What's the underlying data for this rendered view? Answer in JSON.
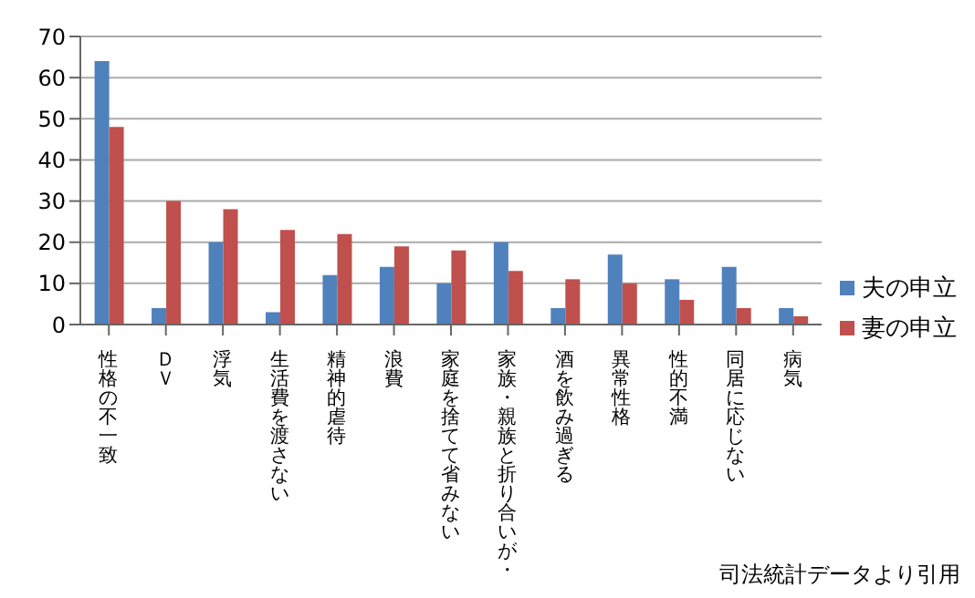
{
  "chart_data": {
    "type": "bar",
    "categories": [
      "性格の不一致",
      "ＤＶ",
      "浮気",
      "生活費を渡さない",
      "精神的虐待",
      "浪費",
      "家庭を捨てて省みない",
      "家族・親族と折り合いが・",
      "酒を飲み過ぎる",
      "異常性格",
      "性的不満",
      "同居に応じない",
      "病気"
    ],
    "series": [
      {
        "name": "夫の申立",
        "color": "#4f81bd",
        "values": [
          64,
          4,
          20,
          3,
          12,
          14,
          10,
          20,
          4,
          17,
          11,
          14,
          4
        ]
      },
      {
        "name": "妻の申立",
        "color": "#c0504d",
        "values": [
          48,
          30,
          28,
          23,
          22,
          19,
          18,
          13,
          11,
          10,
          6,
          4,
          2
        ]
      }
    ],
    "ylim": [
      0,
      70
    ],
    "yticks": [
      0,
      10,
      20,
      30,
      40,
      50,
      60,
      70
    ],
    "grid": "y",
    "legend": "right",
    "annotations": [
      "司法統計データより引用"
    ]
  }
}
